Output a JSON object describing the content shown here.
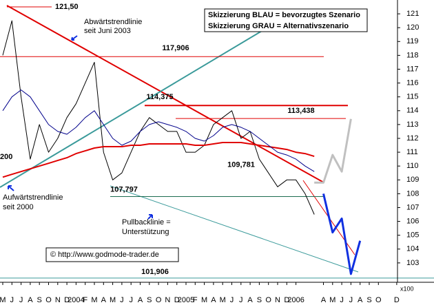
{
  "chart_data": {
    "type": "line",
    "title_lines": [
      "Skizzierung BLAU = bevorzugtes Szenario",
      "Skizzierung GRAU = Alternativszenario"
    ],
    "annotations": {
      "downtrend": [
        "Abwärtstrendlinie",
        "seit Juni 2003"
      ],
      "uptrend": [
        "Aufwärtstrendlinie",
        "seit 2000"
      ],
      "pullback": [
        "Pullbacklinie =",
        "Unterstützung"
      ],
      "left_label": "200",
      "copyright": "© http://www.godmode-trader.de",
      "multiplier": "x100"
    },
    "levels": [
      {
        "value": 121.5,
        "label": "121,50"
      },
      {
        "value": 117.906,
        "label": "117,906"
      },
      {
        "value": 114.375,
        "label": "114,375"
      },
      {
        "value": 113.438,
        "label": "113,438"
      },
      {
        "value": 109.781,
        "label": "109,781"
      },
      {
        "value": 107.797,
        "label": "107,797"
      },
      {
        "value": 101.906,
        "label": "101,906"
      }
    ],
    "categories": [
      "M",
      "J",
      "J",
      "A",
      "S",
      "O",
      "N",
      "D",
      "2004",
      "F",
      "M",
      "A",
      "M",
      "J",
      "J",
      "A",
      "S",
      "O",
      "N",
      "D",
      "2005",
      "F",
      "M",
      "A",
      "M",
      "J",
      "J",
      "A",
      "S",
      "O",
      "N",
      "D",
      "2006",
      null,
      null,
      "A",
      "M",
      "J",
      "J",
      "A",
      "S",
      "O",
      null,
      "D"
    ],
    "series": [
      {
        "color": "#000000",
        "width": 1,
        "values": [
          118.0,
          120.5,
          115.0,
          110.5,
          113.0,
          111.0,
          112.0,
          113.5,
          114.5,
          116.0,
          117.5,
          111.0,
          109.0,
          109.5,
          111.0,
          112.5,
          113.5,
          113.0,
          112.5,
          112.5,
          111.0,
          111.0,
          111.5,
          113.0,
          113.5,
          114.0,
          112.0,
          112.5,
          110.5,
          109.5,
          108.5,
          109.0,
          109.0,
          108.0,
          106.5,
          null,
          null,
          null,
          null,
          null,
          null,
          null,
          null,
          null
        ]
      },
      {
        "color": "#e00000",
        "width": 2,
        "values": [
          109.2,
          109.4,
          109.6,
          109.8,
          110.0,
          110.2,
          110.4,
          110.6,
          110.9,
          111.1,
          111.3,
          111.4,
          111.4,
          111.4,
          111.5,
          111.5,
          111.6,
          111.6,
          111.6,
          111.6,
          111.6,
          111.5,
          111.5,
          111.6,
          111.7,
          111.7,
          111.7,
          111.6,
          111.5,
          111.4,
          111.3,
          111.2,
          111.0,
          110.9,
          110.7,
          null,
          null,
          null,
          null,
          null,
          null,
          null,
          null,
          null
        ]
      },
      {
        "color": "#00008b",
        "width": 1,
        "values": [
          114.0,
          115.0,
          115.5,
          115.0,
          114.0,
          113.0,
          112.5,
          112.3,
          112.8,
          113.5,
          114.0,
          113.0,
          112.0,
          111.5,
          111.8,
          112.5,
          113.0,
          113.2,
          113.0,
          112.8,
          112.5,
          112.0,
          111.8,
          112.2,
          112.8,
          113.0,
          112.8,
          112.5,
          112.0,
          111.5,
          111.0,
          110.8,
          110.5,
          110.0,
          109.6,
          null,
          null,
          null,
          null,
          null,
          null,
          null,
          null,
          null
        ]
      },
      {
        "color": "#c0c0c0",
        "width": 3,
        "values": [
          null,
          null,
          null,
          null,
          null,
          null,
          null,
          null,
          null,
          null,
          null,
          null,
          null,
          null,
          null,
          null,
          null,
          null,
          null,
          null,
          null,
          null,
          null,
          null,
          null,
          null,
          null,
          null,
          null,
          null,
          null,
          null,
          null,
          null,
          108.8,
          108.8,
          110.8,
          109.6,
          113.4,
          null,
          null,
          null,
          null,
          null
        ]
      },
      {
        "color": "#1030e0",
        "width": 3,
        "values": [
          null,
          null,
          null,
          null,
          null,
          null,
          null,
          null,
          null,
          null,
          null,
          null,
          null,
          null,
          null,
          null,
          null,
          null,
          null,
          null,
          null,
          null,
          null,
          null,
          null,
          null,
          null,
          null,
          null,
          null,
          null,
          null,
          null,
          null,
          null,
          108.0,
          105.2,
          106.2,
          102.2,
          104.6,
          null,
          null,
          null,
          null
        ]
      }
    ],
    "ylim": [
      101.6,
      122
    ],
    "yticks": [
      103,
      104,
      105,
      106,
      107,
      108,
      109,
      110,
      111,
      112,
      113,
      114,
      115,
      116,
      117,
      118,
      119,
      120,
      121
    ]
  }
}
